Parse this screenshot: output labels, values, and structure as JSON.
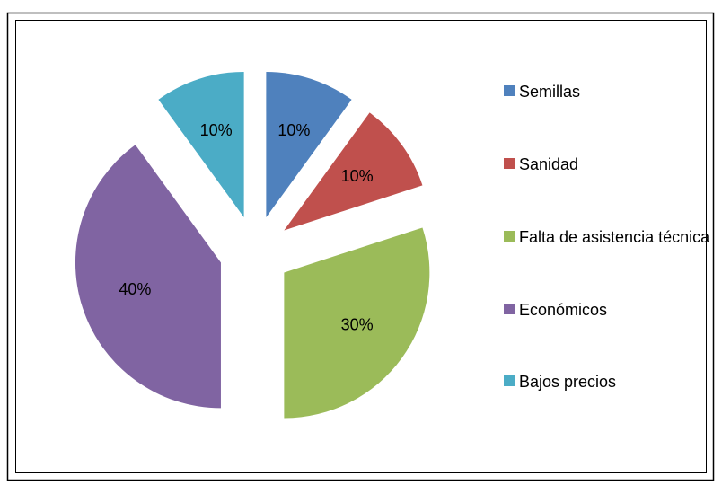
{
  "chart_data": {
    "type": "pie",
    "categories": [
      "Semillas",
      "Sanidad",
      "Falta de asistencia técnica",
      "Económicos",
      "Bajos precios"
    ],
    "values": [
      10,
      10,
      30,
      40,
      10
    ],
    "value_labels": [
      "10%",
      "10%",
      "30%",
      "40%",
      "10%"
    ],
    "colors": [
      "#4f81bd",
      "#c0504d",
      "#9bbb59",
      "#8064a2",
      "#4bacc6"
    ],
    "legend": "right"
  }
}
